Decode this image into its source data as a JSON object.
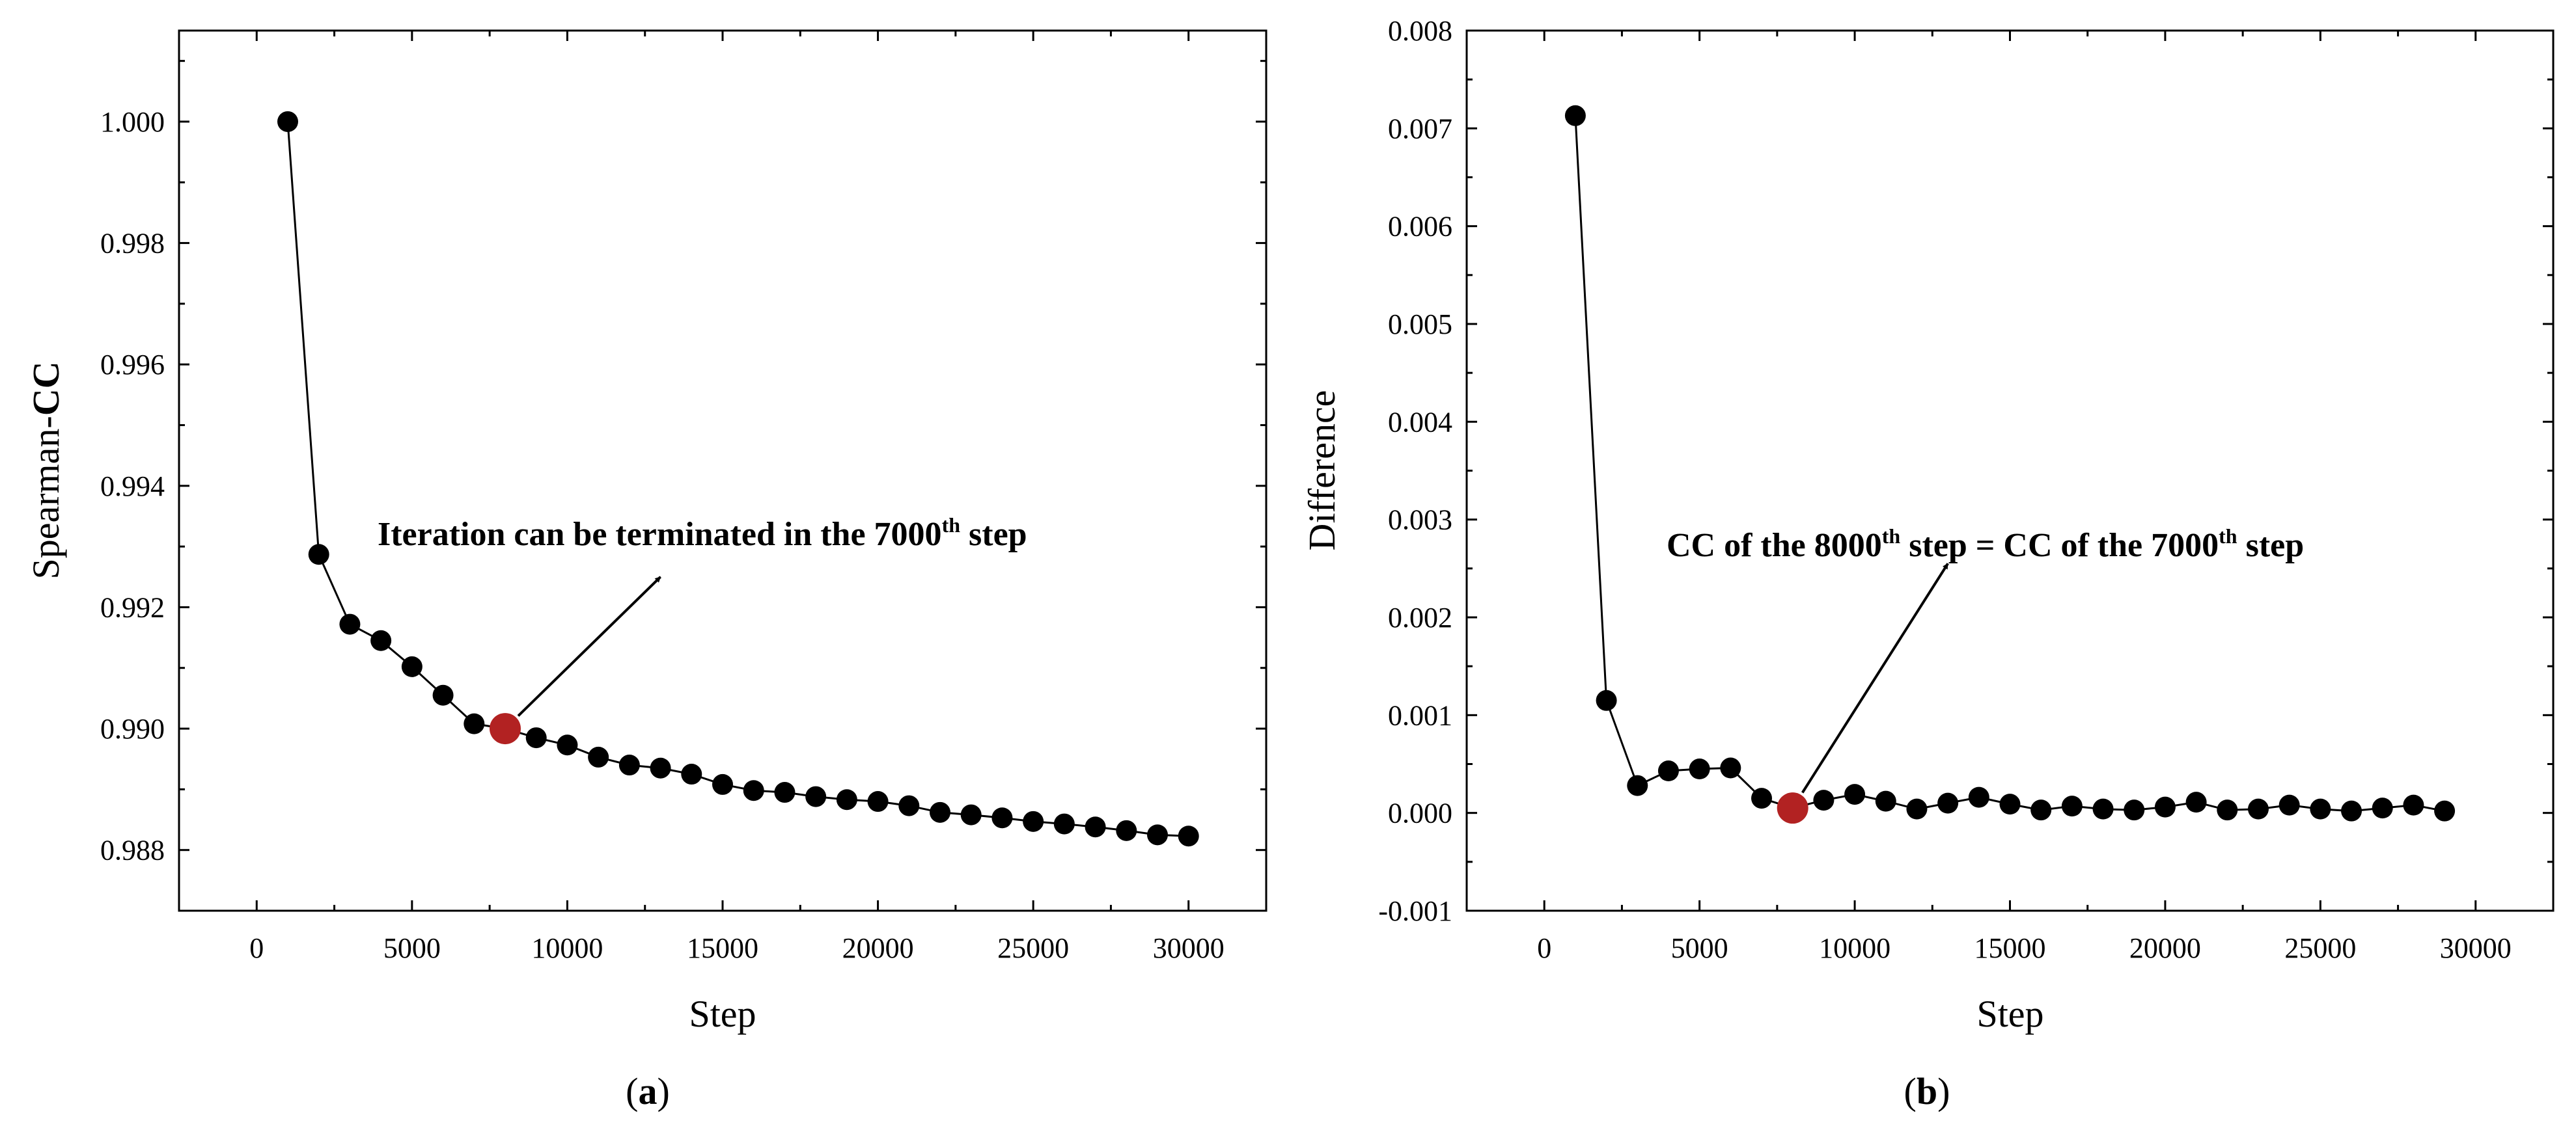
{
  "chart_data": [
    {
      "type": "line",
      "panel_label": "a",
      "title": "",
      "xlabel": "Step",
      "ylabel_prefix": "Spearman-",
      "ylabel_bold": "CC",
      "xlim": [
        -2500,
        32500
      ],
      "ylim": [
        0.987,
        1.0015
      ],
      "xticks": [
        0,
        5000,
        10000,
        15000,
        20000,
        25000,
        30000
      ],
      "yticks": [
        0.988,
        0.99,
        0.992,
        0.994,
        0.996,
        0.998,
        1.0
      ],
      "ytick_decimals": 3,
      "x": [
        1000,
        2000,
        3000,
        4000,
        5000,
        6000,
        7000,
        8000,
        9000,
        10000,
        11000,
        12000,
        13000,
        14000,
        15000,
        16000,
        17000,
        18000,
        19000,
        20000,
        21000,
        22000,
        23000,
        24000,
        25000,
        26000,
        27000,
        28000,
        29000,
        30000
      ],
      "y": [
        1.0,
        0.99287,
        0.99172,
        0.99145,
        0.99102,
        0.99055,
        0.99008,
        0.99,
        0.98985,
        0.98973,
        0.98953,
        0.9894,
        0.98935,
        0.98925,
        0.98908,
        0.98898,
        0.98895,
        0.98888,
        0.98883,
        0.9888,
        0.98873,
        0.98862,
        0.98858,
        0.98853,
        0.98847,
        0.98843,
        0.98838,
        0.98832,
        0.98825,
        0.98823
      ],
      "highlight_index": 7,
      "highlight_color": "#b22222",
      "point_color": "#000000",
      "annotation": {
        "text_before": "Iteration can be terminated in the 7000",
        "sup": "th",
        "text_after": " step",
        "arrow_tail": [
          8000,
          0.99
        ],
        "arrow_head": [
          13000,
          0.9925
        ]
      }
    },
    {
      "type": "line",
      "panel_label": "b",
      "title": "",
      "xlabel": "Step",
      "ylabel": "Difference",
      "xlim": [
        -2500,
        32500
      ],
      "ylim": [
        -0.001,
        0.008
      ],
      "xticks": [
        0,
        5000,
        10000,
        15000,
        20000,
        25000,
        30000
      ],
      "yticks": [
        -0.001,
        0.0,
        0.001,
        0.002,
        0.003,
        0.004,
        0.005,
        0.006,
        0.007,
        0.008
      ],
      "ytick_decimals": 3,
      "x": [
        1000,
        2000,
        3000,
        4000,
        5000,
        6000,
        7000,
        8000,
        9000,
        10000,
        11000,
        12000,
        13000,
        14000,
        15000,
        16000,
        17000,
        18000,
        19000,
        20000,
        21000,
        22000,
        23000,
        24000,
        25000,
        26000,
        27000,
        28000,
        29000
      ],
      "y": [
        0.00713,
        0.00115,
        0.00028,
        0.00043,
        0.00045,
        0.00046,
        0.00015,
        5e-05,
        0.00013,
        0.00019,
        0.00012,
        4e-05,
        0.0001,
        0.00016,
        9e-05,
        3e-05,
        7e-05,
        4e-05,
        3e-05,
        6e-05,
        0.00011,
        3e-05,
        4e-05,
        8e-05,
        4e-05,
        2e-05,
        5e-05,
        8e-05,
        2e-05
      ],
      "highlight_index": 7,
      "highlight_color": "#b22222",
      "point_color": "#000000",
      "annotation": {
        "text_a": "CC of the 8000",
        "sup_a": "th",
        "text_b": " step = CC of the 7000",
        "sup_b": "th",
        "text_c": " step",
        "arrow_tail": [
          8000,
          5e-05
        ],
        "arrow_head": [
          13000,
          0.00255
        ]
      }
    }
  ]
}
